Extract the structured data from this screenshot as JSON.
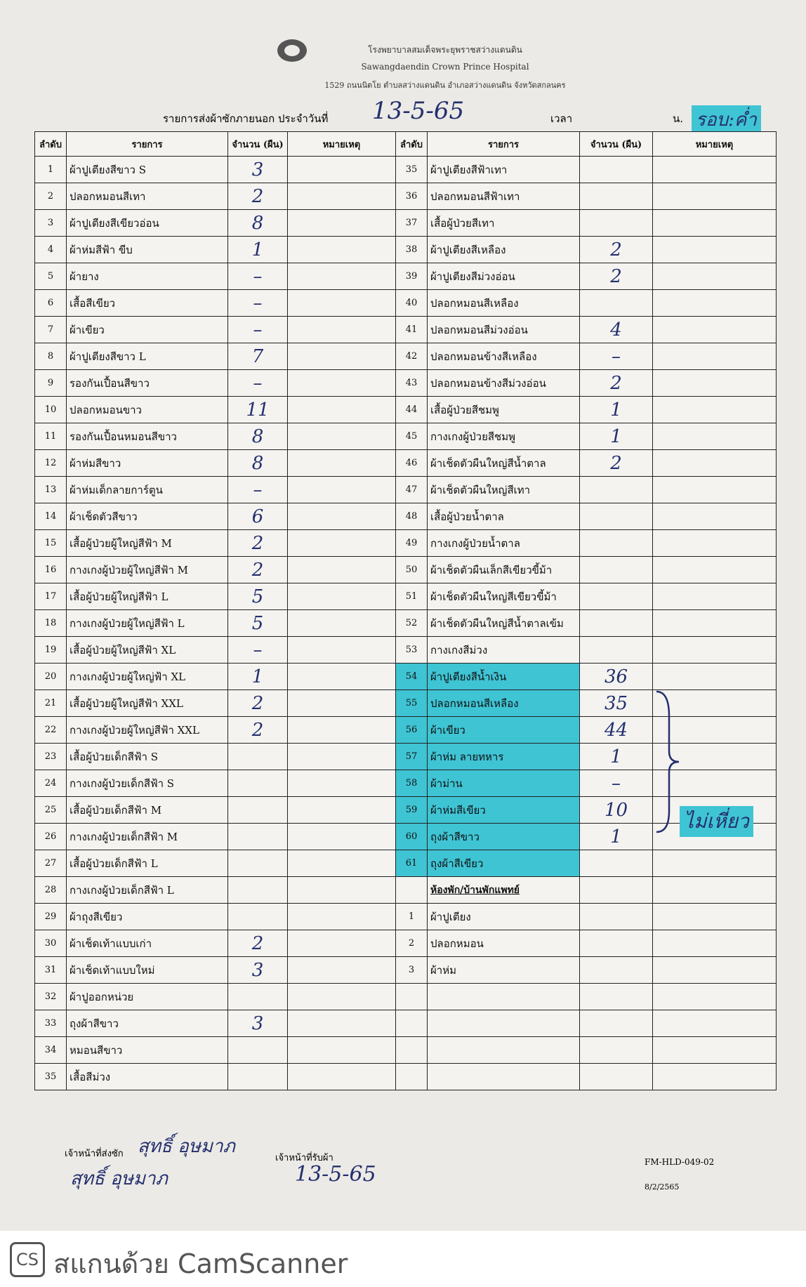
{
  "header": {
    "hospital_th": "โรงพยาบาลสมเด็จพระยุพราชสว่างแดนดิน",
    "hospital_en": "Sawangdaendin Crown Prince Hospital",
    "address": "1529 ถนนนิตโย ตำบลสว่างแดนดิน อำเภอสว่างแดนดิน จังหวัดสกลนคร",
    "title": "รายการส่งผ้าซักภายนอก ประจำวันที่",
    "date": "13-5-65",
    "time_label": "เวลา",
    "time_unit": "น.",
    "round": "รอบ:ค่ำ"
  },
  "table": {
    "columns": [
      "ลำดับ",
      "รายการ",
      "จำนวน (ผืน)",
      "หมายเหตุ",
      "ลำดับ",
      "รายการ",
      "จำนวน (ผืน)",
      "หมายเหตุ"
    ],
    "left_rows": [
      {
        "no": "1",
        "item": "ผ้าปูเตียงสีขาว S",
        "qty": "3"
      },
      {
        "no": "2",
        "item": "ปลอกหมอนสีเทา",
        "qty": "2"
      },
      {
        "no": "3",
        "item": "ผ้าปูเตียงสีเขียวอ่อน",
        "qty": "8"
      },
      {
        "no": "4",
        "item": "ผ้าห่มสีฟ้า ขีบ",
        "qty": "1"
      },
      {
        "no": "5",
        "item": "ผ้ายาง",
        "qty": "–"
      },
      {
        "no": "6",
        "item": "เสื้อสีเขียว",
        "qty": "–"
      },
      {
        "no": "7",
        "item": "ผ้าเขียว",
        "qty": "–"
      },
      {
        "no": "8",
        "item": "ผ้าปูเตียงสีขาว L",
        "qty": "7"
      },
      {
        "no": "9",
        "item": "รองกันเปื้อนสีขาว",
        "qty": "–"
      },
      {
        "no": "10",
        "item": "ปลอกหมอนขาว",
        "qty": "11"
      },
      {
        "no": "11",
        "item": "รองกันเปื้อนหมอนสีขาว",
        "qty": "8"
      },
      {
        "no": "12",
        "item": "ผ้าห่มสีขาว",
        "qty": "8"
      },
      {
        "no": "13",
        "item": "ผ้าห่มเด็กลายการ์ตูน",
        "qty": "–"
      },
      {
        "no": "14",
        "item": "ผ้าเช็ดตัวสีขาว",
        "qty": "6"
      },
      {
        "no": "15",
        "item": "เสื้อผู้ป่วยผู้ใหญ่สีฟ้า M",
        "qty": "2"
      },
      {
        "no": "16",
        "item": "กางเกงผู้ป่วยผู้ใหญ่สีฟ้า M",
        "qty": "2"
      },
      {
        "no": "17",
        "item": "เสื้อผู้ป่วยผู้ใหญ่สีฟ้า L",
        "qty": "5"
      },
      {
        "no": "18",
        "item": "กางเกงผู้ป่วยผู้ใหญ่สีฟ้า L",
        "qty": "5"
      },
      {
        "no": "19",
        "item": "เสื้อผู้ป่วยผู้ใหญ่สีฟ้า XL",
        "qty": "–"
      },
      {
        "no": "20",
        "item": "กางเกงผู้ป่วยผู้ใหญ่ฟ้า XL",
        "qty": "1"
      },
      {
        "no": "21",
        "item": "เสื้อผู้ป่วยผู้ใหญ่สีฟ้า XXL",
        "qty": "2"
      },
      {
        "no": "22",
        "item": "กางเกงผู้ป่วยผู้ใหญ่สีฟ้า XXL",
        "qty": "2"
      },
      {
        "no": "23",
        "item": "เสื้อผู้ป่วยเด็กสีฟ้า S"
      },
      {
        "no": "24",
        "item": "กางเกงผู้ป่วยเด็กสีฟ้า S"
      },
      {
        "no": "25",
        "item": "เสื้อผู้ป่วยเด็กสีฟ้า M"
      },
      {
        "no": "26",
        "item": "กางเกงผู้ป่วยเด็กสีฟ้า M"
      },
      {
        "no": "27",
        "item": "เสื้อผู้ป่วยเด็กสีฟ้า L"
      },
      {
        "no": "28",
        "item": "กางเกงผู้ป่วยเด็กสีฟ้า L"
      },
      {
        "no": "29",
        "item": "ผ้าถุงสีเขียว"
      },
      {
        "no": "30",
        "item": "ผ้าเช็ดเท้าแบบเก่า",
        "qty": "2"
      },
      {
        "no": "31",
        "item": "ผ้าเช็ดเท้าแบบใหม่",
        "qty": "3"
      },
      {
        "no": "32",
        "item": "ผ้าปูออกหน่วย"
      },
      {
        "no": "33",
        "item": "ถุงผ้าสีขาว",
        "qty": "3"
      },
      {
        "no": "34",
        "item": "หมอนสีขาว"
      },
      {
        "no": "35",
        "item": "เสื้อสีม่วง"
      }
    ],
    "right_rows": [
      {
        "no": "35",
        "item": "ผ้าปูเตียงสีฟ้าเทา"
      },
      {
        "no": "36",
        "item": "ปลอกหมอนสีฟ้าเทา"
      },
      {
        "no": "37",
        "item": "เสื้อผู้ป่วยสีเทา"
      },
      {
        "no": "38",
        "item": "ผ้าปูเตียงสีเหลือง",
        "qty": "2"
      },
      {
        "no": "39",
        "item": "ผ้าปูเตียงสีม่วงอ่อน",
        "qty": "2"
      },
      {
        "no": "40",
        "item": "ปลอกหมอนสีเหลือง"
      },
      {
        "no": "41",
        "item": "ปลอกหมอนสีม่วงอ่อน",
        "qty": "4"
      },
      {
        "no": "42",
        "item": "ปลอกหมอนข้างสีเหลือง",
        "qty": "–"
      },
      {
        "no": "43",
        "item": "ปลอกหมอนข้างสีม่วงอ่อน",
        "qty": "2"
      },
      {
        "no": "44",
        "item": "เสื้อผู้ป่วยสีชมพู",
        "qty": "1"
      },
      {
        "no": "45",
        "item": "กางเกงผู้ป่วยสีชมพู",
        "qty": "1"
      },
      {
        "no": "46",
        "item": "ผ้าเช็ดตัวผืนใหญ่สีน้ำตาล",
        "qty": "2"
      },
      {
        "no": "47",
        "item": "ผ้าเช็ดตัวผืนใหญ่สีเทา"
      },
      {
        "no": "48",
        "item": "เสื้อผู้ป่วยน้ำตาล"
      },
      {
        "no": "49",
        "item": "กางเกงผู้ป่วยน้ำตาล"
      },
      {
        "no": "50",
        "item": "ผ้าเช็ดตัวผืนเล็กสีเขียวขี้ม้า"
      },
      {
        "no": "51",
        "item": "ผ้าเช็ดตัวผืนใหญ่สีเขียวขี้ม้า"
      },
      {
        "no": "52",
        "item": "ผ้าเช็ดตัวผืนใหญ่สีน้ำตาลเข้ม"
      },
      {
        "no": "53",
        "item": "กางเกงสีม่วง"
      },
      {
        "no": "54",
        "item": "ผ้าปูเตียงสีน้ำเงิน",
        "qty": "36",
        "highlight": true
      },
      {
        "no": "55",
        "item": "ปลอกหมอนสีเหลือง",
        "qty": "35",
        "highlight": true
      },
      {
        "no": "56",
        "item": "ผ้าเขียว",
        "qty": "44",
        "highlight": true
      },
      {
        "no": "57",
        "item": "ผ้าห่ม ลายทหาร",
        "qty": "1",
        "highlight": true
      },
      {
        "no": "58",
        "item": "ผ้าม่าน",
        "qty": "–",
        "highlight": true
      },
      {
        "no": "59",
        "item": "ผ้าห่มสีเขียว",
        "qty": "10",
        "highlight": true
      },
      {
        "no": "60",
        "item": "ถุงผ้าสีขาว",
        "qty": "1",
        "highlight": true
      },
      {
        "no": "61",
        "item": "ถุงผ้าสีเขียว",
        "highlight": true
      },
      {
        "section": "ห้องพัก/บ้านพักแพทย์"
      },
      {
        "no": "1",
        "item": "ผ้าปูเตียง"
      },
      {
        "no": "2",
        "item": "ปลอกหมอน"
      },
      {
        "no": "3",
        "item": "ผ้าห่ม"
      }
    ]
  },
  "annotation": "ไม่เหี่ยว",
  "footer": {
    "sender_label": "เจ้าหน้าที่ส่งซัก",
    "signatures": [
      "สุทธิ์ อุษมาภ",
      "สุทธิ์ อุษมาภ"
    ],
    "receiver_label": "เจ้าหน้าที่รับผ้า",
    "receiver_date": "13-5-65",
    "form_code": "FM-HLD-049-02",
    "form_date": "8/2/2565"
  },
  "scanner": "สแกนด้วย CamScanner"
}
